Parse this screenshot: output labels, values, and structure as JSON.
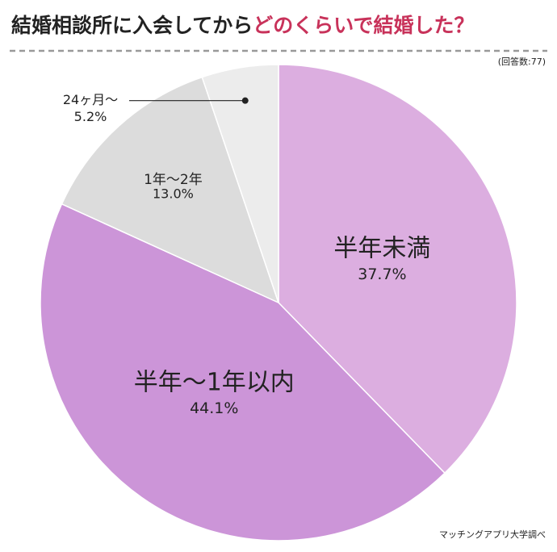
{
  "chart_data": {
    "type": "pie",
    "title": "結婚相談所に入会してから",
    "title_highlight": "どのくらいで結婚した？",
    "note": "(回答数:77)",
    "source": "マッチングアプリ大学調べ",
    "categories": [
      "半年未満",
      "半年〜1年以内",
      "1年〜2年",
      "24ヶ月〜"
    ],
    "values": [
      37.7,
      44.1,
      13.0,
      5.2
    ],
    "value_labels": [
      "37.7%",
      "44.1%",
      "13.0%",
      "5.2%"
    ],
    "colors": [
      "#dcaee0",
      "#cc95d8",
      "#dcdcdc",
      "#ececec"
    ],
    "highlight_color": "#c8325a"
  }
}
